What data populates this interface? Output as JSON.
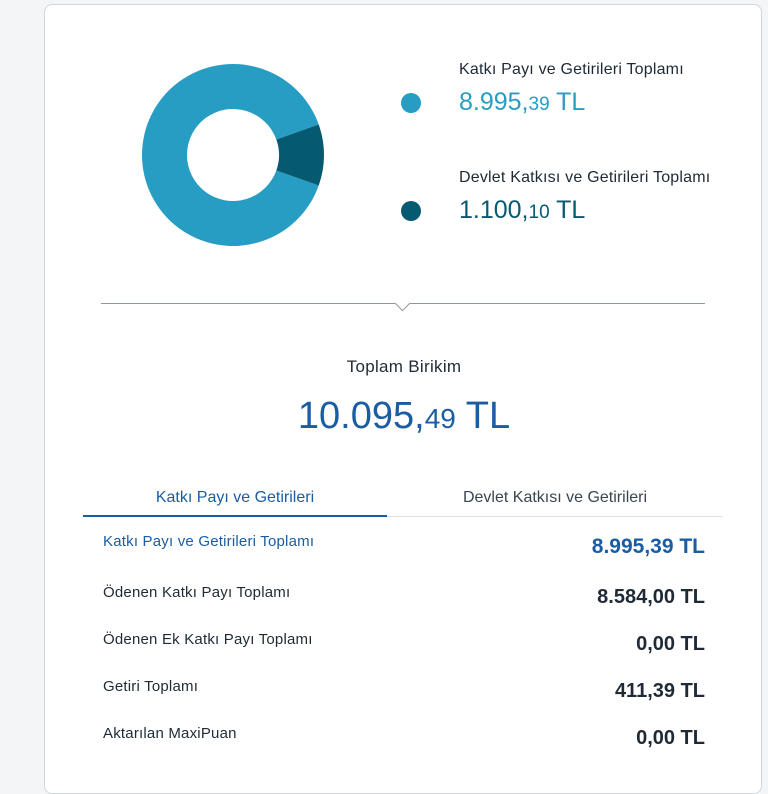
{
  "colors": {
    "katki": "#279dc4",
    "devlet": "#055a72",
    "brand_blue": "#1a5da2"
  },
  "donut": {
    "series": [
      {
        "name": "Katkı Payı ve Getirileri Toplamı",
        "value": 8995.39
      },
      {
        "name": "Devlet Katkısı ve Getirileri Toplamı",
        "value": 1100.1
      }
    ]
  },
  "legend": [
    {
      "label": "Katkı Payı ve Getirileri Toplamı",
      "amount_int": "8.995,",
      "amount_dec": "39",
      "currency": " TL"
    },
    {
      "label": "Devlet Katkısı ve Getirileri Toplamı",
      "amount_int": "1.100,",
      "amount_dec": "10",
      "currency": " TL"
    }
  ],
  "total": {
    "label": "Toplam Birikim",
    "amount_int": "10.095,",
    "amount_dec": "49",
    "currency": " TL"
  },
  "tabs": [
    {
      "label": "Katkı Payı ve Getirileri",
      "active": true
    },
    {
      "label": "Devlet Katkısı ve Getirileri",
      "active": false
    }
  ],
  "rows": [
    {
      "label": "Katkı Payı ve Getirileri Toplamı",
      "value": "8.995,39 TL"
    },
    {
      "label": "Ödenen Katkı Payı Toplamı",
      "value": "8.584,00 TL"
    },
    {
      "label": "Ödenen Ek Katkı Payı Toplamı",
      "value": "0,00 TL"
    },
    {
      "label": "Getiri Toplamı",
      "value": "411,39 TL"
    },
    {
      "label": "Aktarılan MaxiPuan",
      "value": "0,00 TL"
    }
  ]
}
